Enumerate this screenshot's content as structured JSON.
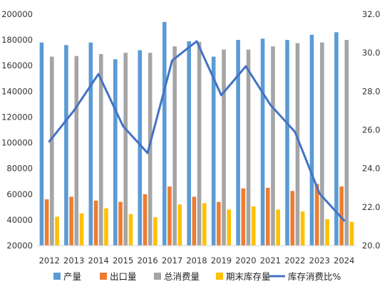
{
  "chart_data": {
    "type": "bar",
    "categories": [
      "2012",
      "2013",
      "2014",
      "2015",
      "2016",
      "2017",
      "2018",
      "2019",
      "2020",
      "2021",
      "2022",
      "2023",
      "2024"
    ],
    "series": [
      {
        "name": "产量",
        "type": "bar",
        "axis": "left",
        "color": "#5B9BD5",
        "values": [
          178000,
          176000,
          178000,
          165000,
          172000,
          194000,
          179000,
          167000,
          180000,
          181000,
          180000,
          184000,
          186000
        ]
      },
      {
        "name": "出口量",
        "type": "bar",
        "axis": "left",
        "color": "#ED7D31",
        "values": [
          56000,
          58000,
          55000,
          54000,
          60000,
          66000,
          58000,
          54000,
          64500,
          65000,
          62500,
          68000,
          66000
        ]
      },
      {
        "name": "总消费量",
        "type": "bar",
        "axis": "left",
        "color": "#A5A5A5",
        "values": [
          167000,
          167500,
          169000,
          170000,
          170000,
          175000,
          178500,
          172500,
          172500,
          175000,
          177500,
          178000,
          180000
        ]
      },
      {
        "name": "期末库存量",
        "type": "bar",
        "axis": "left",
        "color": "#FFC000",
        "values": [
          42500,
          45000,
          49000,
          44500,
          42000,
          52000,
          53000,
          48000,
          50500,
          48000,
          46500,
          40500,
          38500
        ]
      },
      {
        "name": "库存消费比%",
        "type": "line",
        "axis": "right",
        "color": "#4472C4",
        "values": [
          25.4,
          27.0,
          28.9,
          26.2,
          24.8,
          29.6,
          30.6,
          27.8,
          29.3,
          27.3,
          25.9,
          22.7,
          21.3
        ]
      }
    ],
    "y_left": {
      "min": 20000,
      "max": 200000,
      "step": 20000,
      "tick_labels": [
        "20000",
        "40000",
        "60000",
        "80000",
        "100000",
        "120000",
        "140000",
        "160000",
        "180000",
        "200000"
      ]
    },
    "y_right": {
      "min": 20.0,
      "max": 32.0,
      "step": 2.0,
      "tick_labels": [
        "20.0",
        "22.0",
        "24.0",
        "26.0",
        "28.0",
        "30.0",
        "32.0"
      ]
    },
    "grid": false,
    "legend_position": "bottom"
  }
}
